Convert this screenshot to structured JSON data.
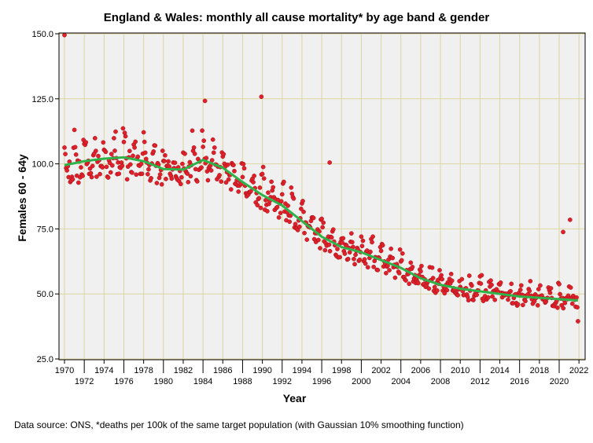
{
  "chart_data": {
    "type": "scatter",
    "title": "England & Wales: monthly all cause mortality* by age band & gender",
    "xlabel": "Year",
    "ylabel": "Females 60 - 64y",
    "xlim": [
      1969.4,
      2022.6
    ],
    "ylim": [
      25,
      150
    ],
    "y_ticks": [
      "25.0",
      "50.0",
      "75.0",
      "100.0",
      "125.0",
      "150.0"
    ],
    "x_ticks": [
      "1970",
      "1972",
      "1974",
      "1976",
      "1978",
      "1980",
      "1982",
      "1984",
      "1986",
      "1988",
      "1990",
      "1992",
      "1994",
      "1996",
      "1998",
      "2000",
      "2002",
      "2004",
      "2006",
      "2008",
      "2010",
      "2012",
      "2014",
      "2016",
      "2018",
      "2020",
      "2022"
    ],
    "grid": true,
    "series": [
      {
        "name": "monthly mortality",
        "kind": "scatter",
        "color": "#e0202a",
        "x_range": [
          1970.0,
          2021.9
        ],
        "points_per_year": 12,
        "notable_points": [
          [
            1970.0,
            149.5
          ],
          [
            1989.9,
            125.8
          ],
          [
            1984.2,
            124.2
          ],
          [
            1996.8,
            100.5
          ],
          [
            2020.4,
            73.8
          ],
          [
            2021.1,
            78.5
          ],
          [
            2021.9,
            39.5
          ]
        ]
      },
      {
        "name": "Gaussian 10% smoothing",
        "kind": "line",
        "color": "#2db34a",
        "points": [
          [
            1970,
            99.5
          ],
          [
            1972,
            101
          ],
          [
            1974,
            102
          ],
          [
            1976,
            102.5
          ],
          [
            1978,
            101
          ],
          [
            1980,
            98
          ],
          [
            1982,
            97.8
          ],
          [
            1984,
            101.5
          ],
          [
            1986,
            98.5
          ],
          [
            1988,
            93
          ],
          [
            1990,
            88
          ],
          [
            1992,
            84
          ],
          [
            1994,
            78
          ],
          [
            1996,
            72
          ],
          [
            1998,
            68
          ],
          [
            2000,
            66
          ],
          [
            2002,
            63
          ],
          [
            2004,
            60
          ],
          [
            2006,
            56
          ],
          [
            2008,
            53.5
          ],
          [
            2010,
            52
          ],
          [
            2012,
            51
          ],
          [
            2014,
            50
          ],
          [
            2016,
            49
          ],
          [
            2018,
            48.5
          ],
          [
            2020,
            48
          ],
          [
            2021.9,
            47.5
          ]
        ]
      }
    ]
  },
  "footer": "Data source: ONS, *deaths per 100k of the same target population (with Gaussian 10% smoothing function)"
}
